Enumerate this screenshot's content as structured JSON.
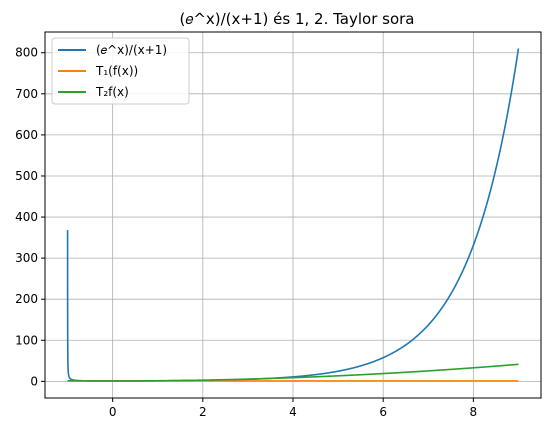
{
  "chart_data": {
    "type": "line",
    "title": "(𝑒^x)/(x+1) és 1, 2. Taylor sora",
    "xlabel": "",
    "ylabel": "",
    "xlim": [
      -1.5,
      9.5
    ],
    "ylim": [
      -40.5,
      850.5
    ],
    "xticks": [
      0,
      2,
      4,
      6,
      8
    ],
    "xtick_labels": [
      "0",
      "2",
      "4",
      "6",
      "8"
    ],
    "yticks": [
      0,
      100,
      200,
      300,
      400,
      500,
      600,
      700,
      800
    ],
    "ytick_labels": [
      "0",
      "100",
      "200",
      "300",
      "400",
      "500",
      "600",
      "700",
      "800"
    ],
    "grid": true,
    "legend_position": "upper-left",
    "series": [
      {
        "name": "(𝑒^x)/(x+1)",
        "color": "#1f77b4",
        "formula": "exp(x)/(x+1)",
        "x_range": [
          -0.999,
          9
        ],
        "points": [
          [
            -0.999,
            368
          ],
          [
            -0.995,
            73.7
          ],
          [
            -0.98,
            18.6
          ],
          [
            -0.95,
            7.7
          ],
          [
            -0.9,
            4.07
          ],
          [
            -0.8,
            2.25
          ],
          [
            -0.5,
            1.21
          ],
          [
            0,
            1.0
          ],
          [
            1,
            1.36
          ],
          [
            2,
            2.46
          ],
          [
            3,
            5.02
          ],
          [
            4,
            10.9
          ],
          [
            5,
            24.7
          ],
          [
            6,
            57.6
          ],
          [
            7,
            137
          ],
          [
            8,
            331
          ],
          [
            9,
            810
          ]
        ]
      },
      {
        "name": "T₁(f(x))",
        "color": "#ff7f0e",
        "formula": "1",
        "x_range": [
          -1,
          9
        ],
        "points": [
          [
            -1,
            1
          ],
          [
            9,
            1
          ]
        ]
      },
      {
        "name": "T₂f(x)",
        "color": "#2ca02c",
        "formula": "1 + x^2/2",
        "x_range": [
          -1,
          9
        ],
        "points": [
          [
            -1,
            1.5
          ],
          [
            0,
            1
          ],
          [
            2,
            3
          ],
          [
            4,
            9
          ],
          [
            6,
            19
          ],
          [
            8,
            33
          ],
          [
            9,
            41.5
          ]
        ]
      }
    ]
  }
}
